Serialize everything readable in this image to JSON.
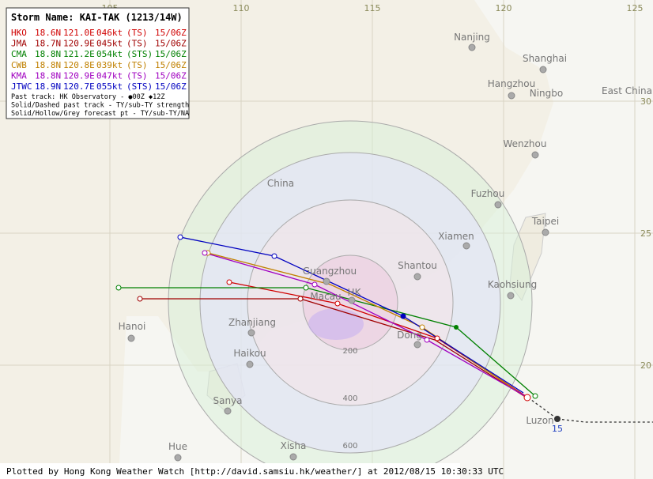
{
  "header": {
    "title": "Storm Name: KAI-TAK (1213/14W)"
  },
  "legend": {
    "rows": [
      [
        "HKO",
        "18.6N",
        "121.0E",
        "046kt",
        "(TS)",
        "15/06Z"
      ],
      [
        "JMA",
        "18.7N",
        "120.9E",
        "045kt",
        "(TS)",
        "15/06Z"
      ],
      [
        "CMA",
        "18.8N",
        "121.2E",
        "054kt",
        "(STS)",
        "15/06Z"
      ],
      [
        "CWB",
        "18.8N",
        "120.8E",
        "039kt",
        "(TS)",
        "15/06Z"
      ],
      [
        "KMA",
        "18.8N",
        "120.9E",
        "047kt",
        "(TS)",
        "15/06Z"
      ],
      [
        "JTWC",
        "18.9N",
        "120.7E",
        "055kt",
        "(STS)",
        "15/06Z"
      ]
    ],
    "notes": [
      "Past track: HK Observatory  -  ●00Z  ◆12Z",
      "Solid/Dashed past track - TY/sub-TY strength",
      "Solid/Hollow/Grey forecast pt - TY/sub-TY/NA"
    ]
  },
  "grid": {
    "lon_labels": [
      "105",
      "110",
      "115",
      "120",
      "125"
    ],
    "lat_labels": [
      "30",
      "25",
      "20"
    ]
  },
  "rings": [
    "200",
    "400",
    "600"
  ],
  "places": [
    "Nanjing",
    "Shanghai",
    "Hangzhou",
    "Ningbo",
    "East China",
    "Wenzhou",
    "China",
    "Fuzhou",
    "Taipei",
    "Xiamen",
    "Shantou",
    "Guangzhou",
    "HK",
    "Macau",
    "Kaohsiung",
    "Zhanjiang",
    "Hanoi",
    "Haikou",
    "Dong",
    "Sanya",
    "Xisha",
    "Hue",
    "Luzon"
  ],
  "marker": "15",
  "footer": "Plotted by Hong Kong Weather Watch [http://david.samsiu.hk/weather/] at 2012/08/15 10:30:33 UTC"
}
